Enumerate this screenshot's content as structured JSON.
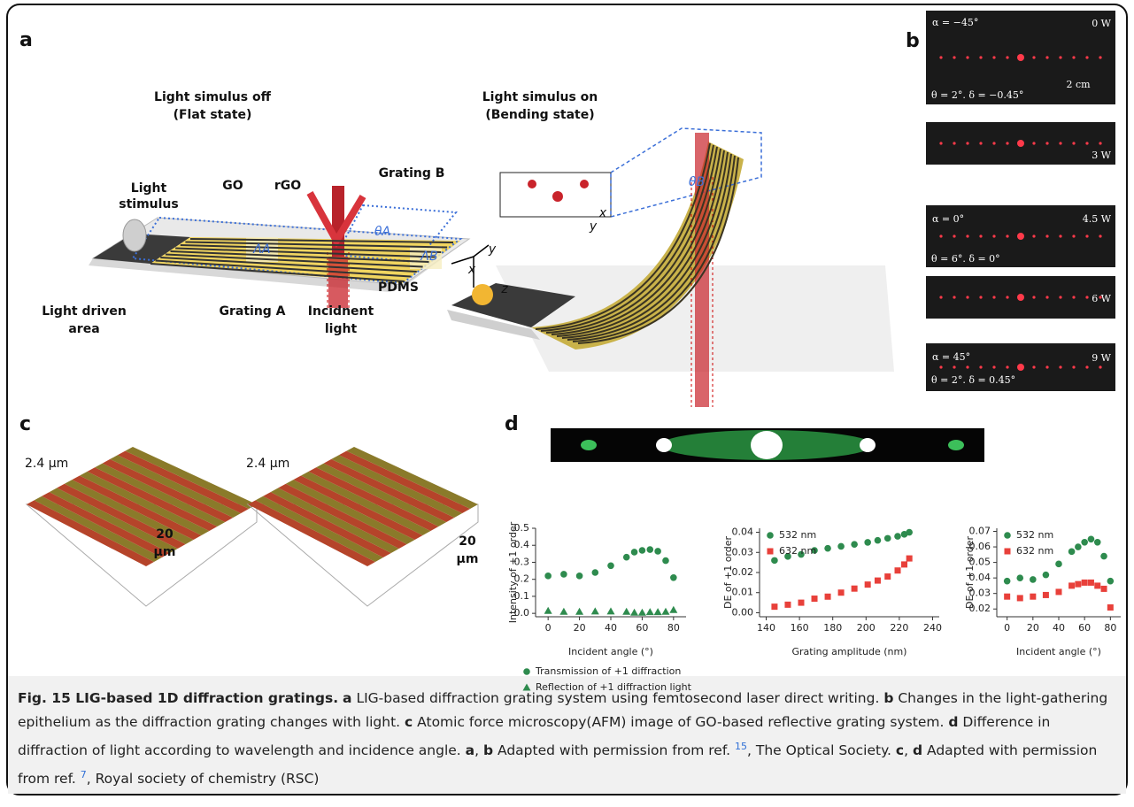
{
  "figure": {
    "panel_a": {
      "label": "a",
      "texts": [
        "Light simulus off",
        "(Flat state)",
        "Light simulus on",
        "(Bending state)",
        "Light",
        "stimulus",
        "GO",
        "rGO",
        "Grating B",
        "θA",
        "ΛA",
        "ΛB",
        "y",
        "x",
        "z",
        "PDMS",
        "Light driven",
        "area",
        "Grating A",
        "Incidnent",
        "light",
        "θB",
        "x",
        "y"
      ]
    },
    "panel_b": {
      "label": "b",
      "texts": [
        "α = −45°",
        "0 W",
        "2 cm",
        "θ = 2°. δ = −0.45°",
        "3 W",
        "α = 0°",
        "4.5 W",
        "θ = 6°. δ = 0°",
        "6 W",
        "α = 45°",
        "9 W",
        "θ = 2°. δ = 0.45°"
      ]
    },
    "panel_c": {
      "label": "c",
      "texts": [
        "2.4 μm",
        "20",
        "μm",
        "2.4 μm",
        "20",
        "μm"
      ]
    },
    "panel_d": {
      "label": "d"
    }
  },
  "chart_data": [
    {
      "type": "scatter",
      "xlabel": "Incident angle (°)",
      "ylabel": "Intensity of +1 order",
      "x": [
        0,
        10,
        20,
        30,
        40,
        50,
        55,
        60,
        65,
        70,
        75,
        80
      ],
      "series": [
        {
          "name": "Transmission of +1 diffraction",
          "color": "#2e8b4e",
          "marker": "circle",
          "values": [
            0.22,
            0.23,
            0.22,
            0.24,
            0.28,
            0.33,
            0.36,
            0.37,
            0.375,
            0.365,
            0.31,
            0.21
          ]
        },
        {
          "name": "Reflection of +1 diffraction light",
          "color": "#2e8b4e",
          "marker": "triangle",
          "values": [
            0.015,
            0.01,
            0.01,
            0.012,
            0.012,
            0.01,
            0.005,
            0.005,
            0.008,
            0.008,
            0.01,
            0.02
          ]
        }
      ],
      "xlim": [
        -8,
        88
      ],
      "xticks": [
        0,
        20,
        40,
        60,
        80
      ],
      "ylim": [
        -0.02,
        0.5
      ],
      "yticks": [
        {
          "value": 0,
          "label": "0.0"
        },
        0.1,
        0.2,
        0.3,
        0.4,
        0.5
      ],
      "legend": "bottom"
    },
    {
      "type": "scatter",
      "xlabel": "Grating amplitude (nm)",
      "ylabel": "DE of +1 order",
      "x": [
        145,
        153,
        161,
        169,
        177,
        185,
        193,
        201,
        207,
        213,
        219,
        223,
        226
      ],
      "series": [
        {
          "name": "532 nm",
          "color": "#2e8b4e",
          "marker": "circle",
          "values": [
            0.026,
            0.028,
            0.029,
            0.031,
            0.032,
            0.033,
            0.034,
            0.035,
            0.036,
            0.037,
            0.038,
            0.039,
            0.04
          ]
        },
        {
          "name": "632 nm",
          "color": "#e8403a",
          "marker": "square",
          "values": [
            0.003,
            0.004,
            0.005,
            0.007,
            0.008,
            0.01,
            0.012,
            0.014,
            0.016,
            0.018,
            0.021,
            0.024,
            0.027
          ]
        }
      ],
      "xlim": [
        136,
        244
      ],
      "xticks": [
        140,
        160,
        180,
        200,
        220,
        240
      ],
      "ylim": [
        -0.002,
        0.042
      ],
      "yticks": [
        {
          "value": 0,
          "label": "0.00"
        },
        {
          "value": 0.01,
          "label": "0.01"
        },
        {
          "value": 0.02,
          "label": "0.02"
        },
        {
          "value": 0.03,
          "label": "0.03"
        },
        {
          "value": 0.04,
          "label": "0.04"
        }
      ],
      "legend": "upper left"
    },
    {
      "type": "scatter",
      "xlabel": "Incident angle (°)",
      "ylabel": "DE of +1 order",
      "x": [
        0,
        10,
        20,
        30,
        40,
        50,
        55,
        60,
        65,
        70,
        75,
        80
      ],
      "series": [
        {
          "name": "532 nm",
          "color": "#2e8b4e",
          "marker": "circle",
          "values": [
            0.038,
            0.04,
            0.039,
            0.042,
            0.049,
            0.057,
            0.06,
            0.063,
            0.065,
            0.063,
            0.054,
            0.038
          ]
        },
        {
          "name": "632 nm",
          "color": "#e8403a",
          "marker": "square",
          "values": [
            0.028,
            0.027,
            0.028,
            0.029,
            0.031,
            0.035,
            0.036,
            0.037,
            0.037,
            0.035,
            0.033,
            0.021
          ]
        }
      ],
      "xlim": [
        -8,
        88
      ],
      "xticks": [
        0,
        20,
        40,
        60,
        80
      ],
      "ylim": [
        0.015,
        0.072
      ],
      "yticks": [
        0.02,
        0.03,
        0.04,
        0.05,
        0.06,
        0.07
      ],
      "legend": "upper left"
    }
  ],
  "caption": [
    "Fig. 15 LIG-based 1D diffraction gratings.",
    "a",
    " LIG-based diffraction grating system using femtosecond laser direct writing. ",
    "b",
    " Changes in the light-gathering epithelium as the diffraction grating changes with light. ",
    "c",
    " Atomic force microscopy(AFM) image of GO-based reflective grating system. ",
    "d",
    " Difference in diffraction of light according to wavelength and incidence angle. ",
    "a",
    ", ",
    "b",
    " Adapted with permission from ref. ",
    "15",
    ", The Optical Society. ",
    "c",
    ", ",
    "d",
    " Adapted with permission from ref. ",
    "7",
    ", Royal society of chemistry (RSC)"
  ]
}
